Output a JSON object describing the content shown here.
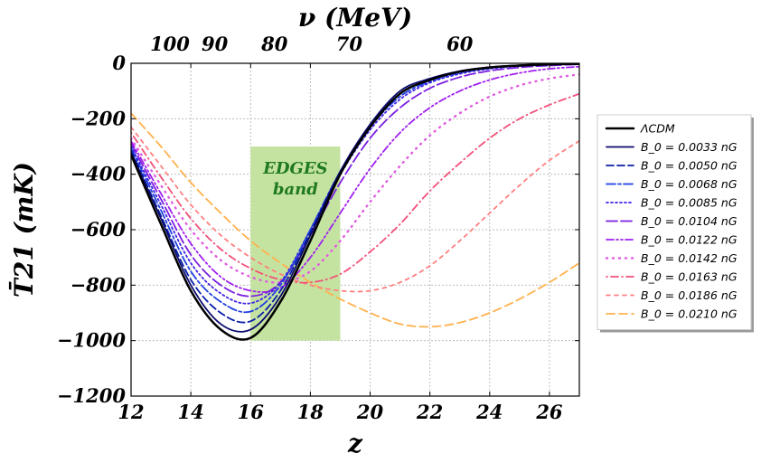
{
  "chart_data": {
    "type": "line",
    "xlabel": "z",
    "ylabel": "T̄21 (mK)",
    "top_axis_label": "ν (MeV)",
    "xlim": [
      12,
      27
    ],
    "ylim": [
      -1200,
      0
    ],
    "x_ticks": [
      "12",
      "14",
      "16",
      "18",
      "20",
      "22",
      "24",
      "26"
    ],
    "y_ticks": [
      "0",
      "−200",
      "−400",
      "−600",
      "−800",
      "−1000",
      "−1200"
    ],
    "top_ticks": [
      {
        "label": "100",
        "z": 13.3
      },
      {
        "label": "90",
        "z": 14.8
      },
      {
        "label": "80",
        "z": 16.8
      },
      {
        "label": "70",
        "z": 19.3
      },
      {
        "label": "60",
        "z": 23.0
      }
    ],
    "grid": true,
    "legend_position": "right",
    "band": {
      "label_line1": "EDGES",
      "label_line2": "band",
      "x_range": [
        16.0,
        19.0
      ],
      "y_range": [
        -1000,
        -300
      ],
      "color": "#c5e3a0",
      "text_color": "#1f7a1f"
    },
    "series": [
      {
        "name": "ΛCDM",
        "color": "#000000",
        "dash": "solid",
        "width": 2.5,
        "x": [
          12,
          13,
          14,
          15,
          16,
          17,
          18,
          19,
          20,
          21,
          22,
          23,
          24,
          25,
          26,
          27
        ],
        "y": [
          -330,
          -580,
          -820,
          -960,
          -990,
          -860,
          -640,
          -400,
          -230,
          -110,
          -60,
          -30,
          -15,
          -8,
          -4,
          -2
        ]
      },
      {
        "name": "B_0 = 0.0033 nG",
        "color": "#0b0b6e",
        "dash": "solid",
        "width": 1.8,
        "x": [
          12,
          13,
          14,
          15,
          16,
          17,
          18,
          19,
          20,
          21,
          22,
          23,
          24,
          25,
          26,
          27
        ],
        "y": [
          -320,
          -560,
          -800,
          -940,
          -960,
          -840,
          -620,
          -390,
          -220,
          -100,
          -55,
          -28,
          -14,
          -7,
          -4,
          -2
        ]
      },
      {
        "name": "B_0 = 0.0050 nG",
        "color": "#0a1fa8",
        "dash": "8,4",
        "width": 1.8,
        "x": [
          12,
          13,
          14,
          15,
          16,
          17,
          18,
          19,
          20,
          21,
          22,
          23,
          24,
          25,
          26,
          27
        ],
        "y": [
          -315,
          -550,
          -780,
          -900,
          -930,
          -820,
          -610,
          -390,
          -225,
          -110,
          -58,
          -30,
          -16,
          -8,
          -4,
          -2
        ]
      },
      {
        "name": "B_0 = 0.0068 nG",
        "color": "#1f3fe0",
        "dash": "10,3,3,3",
        "width": 1.8,
        "x": [
          12,
          13,
          14,
          15,
          16,
          17,
          18,
          19,
          20,
          21,
          22,
          23,
          24,
          25,
          26,
          27
        ],
        "y": [
          -305,
          -530,
          -750,
          -860,
          -895,
          -800,
          -600,
          -390,
          -230,
          -120,
          -65,
          -34,
          -18,
          -9,
          -5,
          -2
        ]
      },
      {
        "name": "B_0 = 0.0085 nG",
        "color": "#3f22e6",
        "dash": "2,3",
        "width": 1.8,
        "x": [
          12,
          13,
          14,
          15,
          16,
          17,
          18,
          19,
          20,
          21,
          22,
          23,
          24,
          25,
          26,
          27
        ],
        "y": [
          -300,
          -510,
          -720,
          -830,
          -865,
          -790,
          -600,
          -400,
          -240,
          -130,
          -70,
          -38,
          -20,
          -10,
          -5,
          -3
        ]
      },
      {
        "name": "B_0 = 0.0104 nG",
        "color": "#7a1fe0",
        "dash": "12,4",
        "width": 1.8,
        "x": [
          12,
          13,
          14,
          15,
          16,
          17,
          18,
          19,
          20,
          21,
          22,
          23,
          24,
          25,
          26,
          27
        ],
        "y": [
          -290,
          -490,
          -690,
          -800,
          -840,
          -790,
          -620,
          -430,
          -270,
          -160,
          -90,
          -50,
          -27,
          -15,
          -8,
          -4
        ]
      },
      {
        "name": "B_0 = 0.0122 nG",
        "color": "#a020f0",
        "dash": "8,3,2,3,2,3",
        "width": 1.8,
        "x": [
          12,
          13,
          14,
          15,
          16,
          17,
          18,
          19,
          20,
          21,
          22,
          23,
          24,
          25,
          26,
          27
        ],
        "y": [
          -280,
          -470,
          -650,
          -770,
          -820,
          -810,
          -700,
          -540,
          -380,
          -250,
          -160,
          -100,
          -60,
          -35,
          -20,
          -12
        ]
      },
      {
        "name": "B_0 = 0.0142 nG",
        "color": "#e05be0",
        "dash": "1,6",
        "width": 2.4,
        "x": [
          12,
          13,
          14,
          15,
          16,
          17,
          18,
          19,
          20,
          21,
          22,
          23,
          24,
          25,
          26,
          27
        ],
        "y": [
          -270,
          -440,
          -600,
          -710,
          -770,
          -790,
          -750,
          -640,
          -500,
          -370,
          -260,
          -180,
          -120,
          -80,
          -55,
          -40
        ]
      },
      {
        "name": "B_0 = 0.0163 nG",
        "color": "#f2507a",
        "dash": "1,4,8,4",
        "width": 1.8,
        "x": [
          12,
          13,
          14,
          15,
          16,
          17,
          18,
          19,
          20,
          21,
          22,
          23,
          24,
          25,
          26,
          27
        ],
        "y": [
          -250,
          -410,
          -560,
          -670,
          -740,
          -780,
          -790,
          -760,
          -680,
          -580,
          -460,
          -360,
          -270,
          -200,
          -150,
          -110
        ]
      },
      {
        "name": "B_0 = 0.0186 nG",
        "color": "#ff7f7f",
        "dash": "4,5",
        "width": 1.8,
        "x": [
          12,
          13,
          14,
          15,
          16,
          17,
          18,
          19,
          20,
          21,
          22,
          23,
          24,
          25,
          26,
          27
        ],
        "y": [
          -230,
          -370,
          -510,
          -620,
          -700,
          -760,
          -800,
          -820,
          -820,
          -790,
          -730,
          -640,
          -540,
          -440,
          -350,
          -280
        ]
      },
      {
        "name": "B_0 = 0.0210 nG",
        "color": "#ffb14e",
        "dash": "9,5",
        "width": 1.8,
        "x": [
          12,
          13,
          14,
          15,
          16,
          17,
          18,
          19,
          20,
          21,
          22,
          23,
          24,
          25,
          26,
          27
        ],
        "y": [
          -180,
          -300,
          -430,
          -540,
          -640,
          -720,
          -790,
          -850,
          -900,
          -940,
          -950,
          -935,
          -900,
          -850,
          -790,
          -720
        ]
      }
    ]
  }
}
